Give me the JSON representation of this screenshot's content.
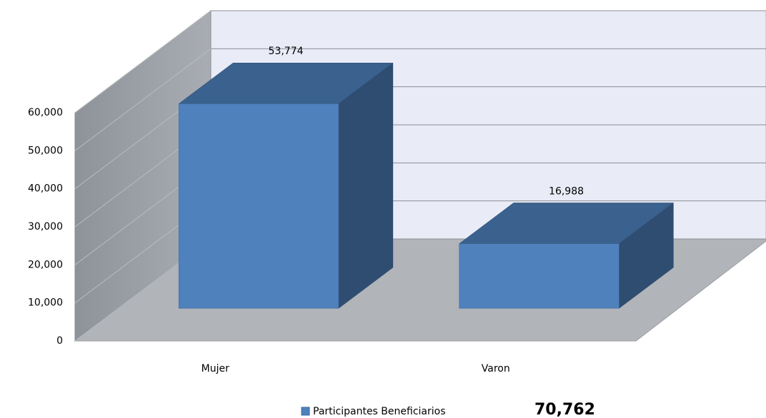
{
  "chart_data": {
    "type": "bar3d",
    "categories": [
      "Mujer",
      "Varon"
    ],
    "series": [
      {
        "name": "Participantes Beneficiarios",
        "color": "#4f81bd",
        "values": [
          53774,
          16988
        ],
        "value_labels": [
          "53,774",
          "16,988"
        ]
      }
    ],
    "ylim": [
      0,
      60000
    ],
    "yticks": [
      0,
      {
        "value": 10000,
        "label": "10,000"
      },
      {
        "value": 20000,
        "label": "20,000"
      },
      {
        "value": 30000,
        "label": "30,000"
      },
      {
        "value": 40000,
        "label": "40,000"
      },
      {
        "value": 50000,
        "label": "50,000"
      },
      {
        "value": 60000,
        "label": "60,000"
      }
    ],
    "grid": true,
    "legend": "bottom",
    "annotation": "70,762"
  }
}
